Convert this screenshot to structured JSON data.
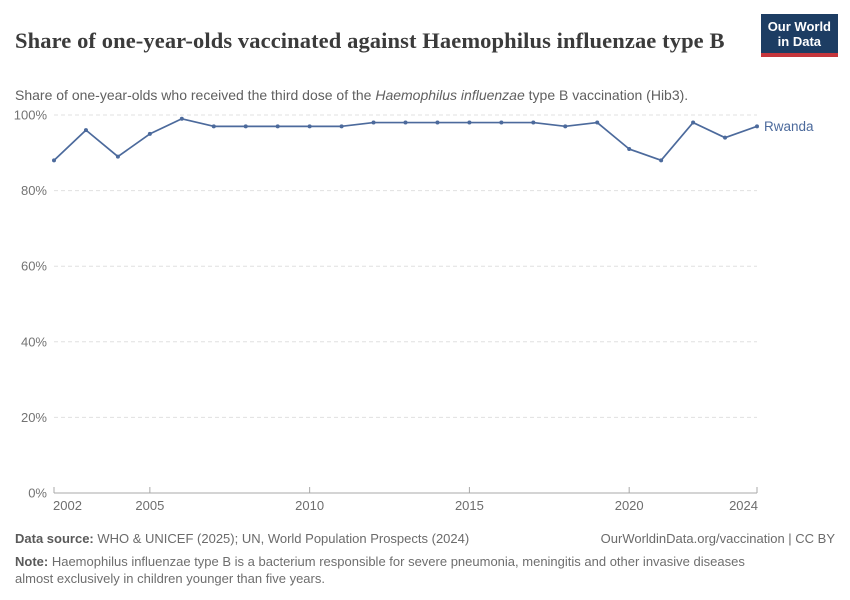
{
  "header": {
    "title": "Share of one-year-olds vaccinated against Haemophilus influenzae type B",
    "subtitle_prefix": "Share of one-year-olds who received the third dose of the ",
    "subtitle_italic": "Haemophilus influenzae",
    "subtitle_suffix": " type B vaccination (Hib3).",
    "logo_line1": "Our World",
    "logo_line2": "in Data"
  },
  "colors": {
    "line": "#4C6A9C",
    "logo_navy": "#1d3d63",
    "logo_red": "#c5363c",
    "grid": "#e0e0e0",
    "axis": "#a8a8a8"
  },
  "chart_data": {
    "type": "line",
    "title": "Share of one-year-olds vaccinated against Haemophilus influenzae type B",
    "x": [
      2002,
      2003,
      2004,
      2005,
      2006,
      2007,
      2008,
      2009,
      2010,
      2011,
      2012,
      2013,
      2014,
      2015,
      2016,
      2017,
      2018,
      2019,
      2020,
      2021,
      2022,
      2023,
      2024
    ],
    "series": [
      {
        "name": "Rwanda",
        "values": [
          88,
          96,
          89,
          95,
          99,
          97,
          97,
          97,
          97,
          97,
          98,
          98,
          98,
          98,
          98,
          98,
          97,
          98,
          91,
          88,
          98,
          94,
          97
        ]
      }
    ],
    "xlim": [
      2002,
      2024
    ],
    "ylim": [
      0,
      100
    ],
    "y_ticks": [
      0,
      20,
      40,
      60,
      80,
      100
    ],
    "y_tick_suffix": "%",
    "x_ticks": [
      2002,
      2005,
      2010,
      2015,
      2020,
      2024
    ],
    "line_color": "#4C6A9C",
    "grid": true,
    "legend": "series label at right end of line",
    "xlabel": "",
    "ylabel": ""
  },
  "footer": {
    "source_label": "Data source:",
    "source_text": " WHO & UNICEF (2025); UN, World Population Prospects (2024)",
    "rights": "OurWorldinData.org/vaccination | CC BY",
    "note_label": "Note:",
    "note_text": " Haemophilus influenzae type B is a bacterium responsible for severe pneumonia, meningitis and other invasive diseases almost exclusively in children younger than five years."
  }
}
